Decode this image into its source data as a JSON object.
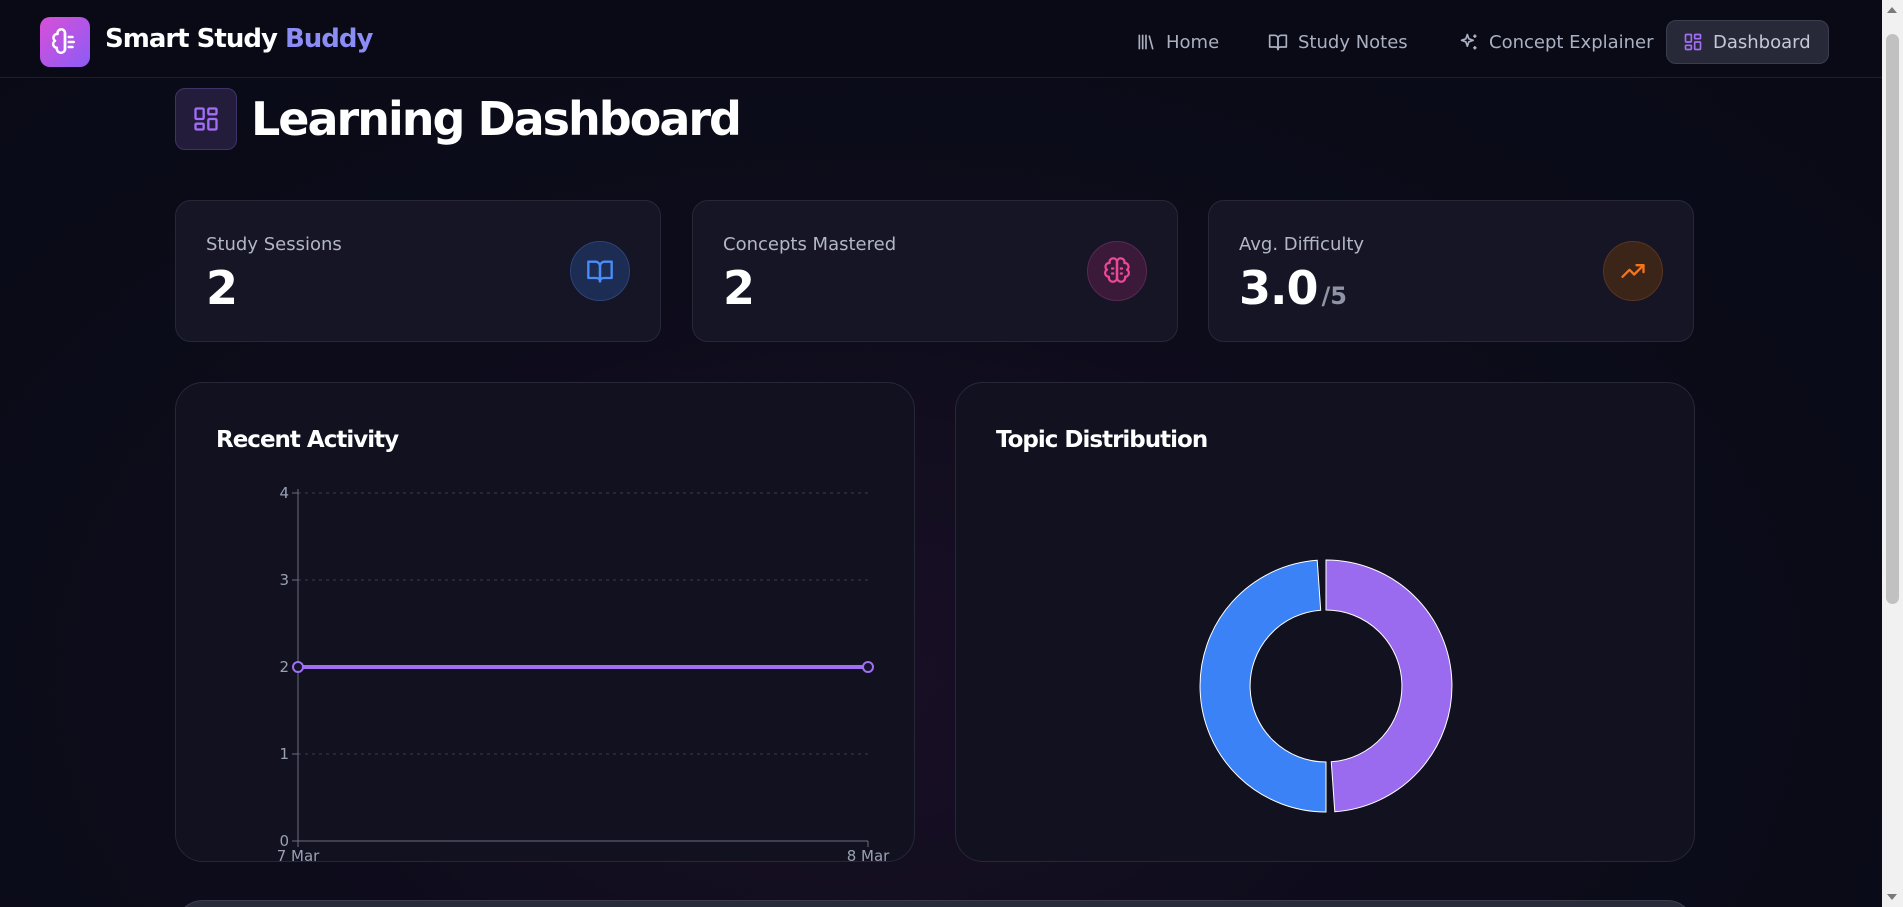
{
  "brand": {
    "name": "Smart Study",
    "accent": "Buddy",
    "logo_icon": "brain-icon"
  },
  "nav": [
    {
      "label": "Home",
      "icon": "library-icon"
    },
    {
      "label": "Study Notes",
      "icon": "book-open-icon"
    },
    {
      "label": "Concept Explainer",
      "icon": "sparkles-icon"
    },
    {
      "label": "Dashboard",
      "icon": "layout-dashboard-icon",
      "active": true
    }
  ],
  "page": {
    "title": "Learning Dashboard",
    "icon": "layout-dashboard-icon"
  },
  "stats": [
    {
      "label": "Study Sessions",
      "value": "2",
      "suffix": "",
      "icon": "book-open-icon",
      "color": "#3b82f6"
    },
    {
      "label": "Concepts Mastered",
      "value": "2",
      "suffix": "",
      "icon": "brain-icon",
      "color": "#ec4899"
    },
    {
      "label": "Avg. Difficulty",
      "value": "3.0",
      "suffix": "/5",
      "icon": "trending-up-icon",
      "color": "#f97316"
    }
  ],
  "charts": {
    "activity_title": "Recent Activity",
    "distribution_title": "Topic Distribution"
  },
  "chart_data": [
    {
      "type": "line",
      "title": "Recent Activity",
      "x": [
        "7 Mar",
        "8 Mar"
      ],
      "series": [
        {
          "values": [
            2,
            2
          ],
          "color": "#a16ef5"
        }
      ],
      "ylim": [
        0,
        4
      ],
      "yticks": [
        0,
        1,
        2,
        3,
        4
      ],
      "grid": true
    },
    {
      "type": "pie",
      "title": "Topic Distribution",
      "donut": true,
      "slices": [
        {
          "value": 1,
          "color": "#9b6bef"
        },
        {
          "value": 1,
          "color": "#3b82f6"
        }
      ]
    }
  ]
}
